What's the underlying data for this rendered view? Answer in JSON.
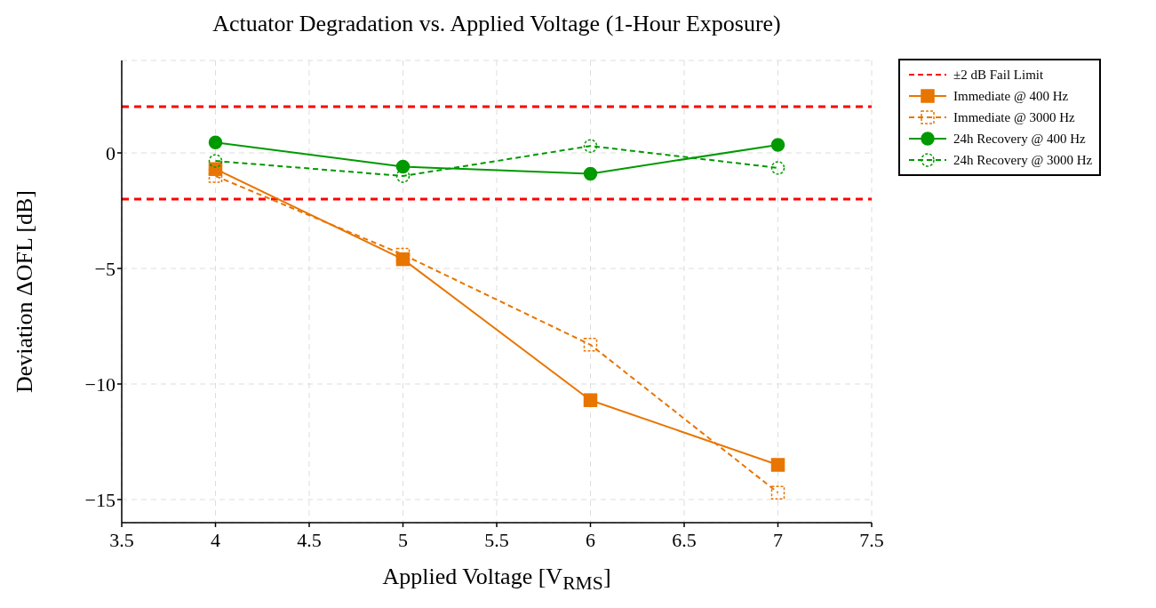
{
  "chart_data": {
    "type": "line",
    "title": "Actuator Degradation vs. Applied Voltage (1-Hour Exposure)",
    "xlabel": "Applied Voltage [V$_{RMS}$]",
    "ylabel": "Deviation ΔOFL [dB]",
    "x": [
      4,
      5,
      6,
      7
    ],
    "series": [
      {
        "name": "Immediate @ 400 Hz",
        "color": "#e87500",
        "values": [
          -0.7,
          -4.6,
          -10.7,
          -13.5
        ],
        "marker": "square",
        "line_style": "solid"
      },
      {
        "name": "Immediate @ 3000 Hz",
        "color": "#e87500",
        "values": [
          -1.0,
          -4.4,
          -8.3,
          -14.7
        ],
        "marker": "square",
        "line_style": "dashed"
      },
      {
        "name": "24h Recovery @ 400 Hz",
        "color": "#009900",
        "values": [
          0.45,
          -0.6,
          -0.9,
          0.35
        ],
        "marker": "circle",
        "line_style": "solid"
      },
      {
        "name": "24h Recovery @ 3000 Hz",
        "color": "#009900",
        "values": [
          -0.35,
          -1.0,
          0.3,
          -0.65
        ],
        "marker": "circle",
        "line_style": "dashed"
      }
    ],
    "ref_lines": [
      {
        "axis": "y",
        "value": 2,
        "label": "±2 dB Fail Limit",
        "color": "#ff0000",
        "line_style": "dashed"
      },
      {
        "axis": "y",
        "value": -2,
        "color": "#ff0000",
        "line_style": "dashed"
      }
    ],
    "xlim": [
      3.5,
      7.5
    ],
    "xticks": [
      3.5,
      4,
      4.5,
      5,
      5.5,
      6,
      6.5,
      7,
      7.5
    ],
    "ylim": [
      -16,
      4
    ],
    "yticks": [
      {
        "value": -15,
        "label": "−15"
      },
      {
        "value": -10,
        "label": "−10"
      },
      {
        "value": -5,
        "label": "−5"
      },
      0
    ],
    "grid": true,
    "legend": "top right"
  }
}
